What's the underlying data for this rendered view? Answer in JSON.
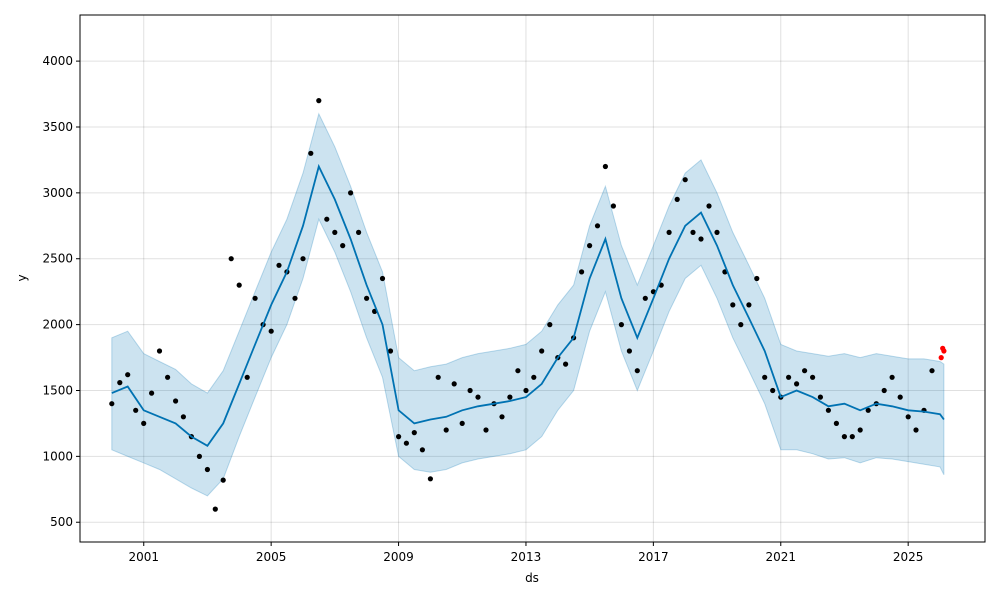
{
  "chart_data": {
    "type": "line",
    "title": "",
    "xlabel": "ds",
    "ylabel": "y",
    "x_range": [
      "1999-01-01",
      "2027-06-01"
    ],
    "ylim": [
      350,
      4350
    ],
    "x_ticks": [
      "2001",
      "2005",
      "2009",
      "2013",
      "2017",
      "2021",
      "2025"
    ],
    "y_ticks": [
      500,
      1000,
      1500,
      2000,
      2500,
      3000,
      3500,
      4000
    ],
    "grid": true,
    "legend": "none",
    "colors": {
      "observed": "#000000",
      "forecast_line": "#0072B2",
      "uncertainty_band": "#0072B2",
      "recent_points": "#ff0000"
    },
    "series": [
      {
        "role": "observed",
        "x": [
          "2000-01-01",
          "2000-04-01",
          "2000-07-01",
          "2000-10-01",
          "2001-01-01",
          "2001-04-01",
          "2001-07-01",
          "2001-10-01",
          "2002-01-01",
          "2002-04-01",
          "2002-07-01",
          "2002-10-01",
          "2003-01-01",
          "2003-04-01",
          "2003-07-01",
          "2003-10-01",
          "2004-01-01",
          "2004-04-01",
          "2004-07-01",
          "2004-10-01",
          "2005-01-01",
          "2005-04-01",
          "2005-07-01",
          "2005-10-01",
          "2006-01-01",
          "2006-04-01",
          "2006-07-01",
          "2006-10-01",
          "2007-01-01",
          "2007-04-01",
          "2007-07-01",
          "2007-10-01",
          "2008-01-01",
          "2008-04-01",
          "2008-07-01",
          "2008-10-01",
          "2009-01-01",
          "2009-04-01",
          "2009-07-01",
          "2009-10-01",
          "2010-01-01",
          "2010-04-01",
          "2010-07-01",
          "2010-10-01",
          "2011-01-01",
          "2011-04-01",
          "2011-07-01",
          "2011-10-01",
          "2012-01-01",
          "2012-04-01",
          "2012-07-01",
          "2012-10-01",
          "2013-01-01",
          "2013-04-01",
          "2013-07-01",
          "2013-10-01",
          "2014-01-01",
          "2014-04-01",
          "2014-07-01",
          "2014-10-01",
          "2015-01-01",
          "2015-04-01",
          "2015-07-01",
          "2015-10-01",
          "2016-01-01",
          "2016-04-01",
          "2016-07-01",
          "2016-10-01",
          "2017-01-01",
          "2017-04-01",
          "2017-07-01",
          "2017-10-01",
          "2018-01-01",
          "2018-04-01",
          "2018-07-01",
          "2018-10-01",
          "2019-01-01",
          "2019-04-01",
          "2019-07-01",
          "2019-10-01",
          "2020-01-01",
          "2020-04-01",
          "2020-07-01",
          "2020-10-01",
          "2021-01-01",
          "2021-04-01",
          "2021-07-01",
          "2021-10-01",
          "2022-01-01",
          "2022-04-01",
          "2022-07-01",
          "2022-10-01",
          "2023-01-01",
          "2023-04-01",
          "2023-07-01",
          "2023-10-01",
          "2024-01-01",
          "2024-04-01",
          "2024-07-01",
          "2024-10-01",
          "2025-01-01",
          "2025-04-01",
          "2025-07-01",
          "2025-10-01"
        ],
        "y": [
          1400,
          1560,
          1620,
          1350,
          1250,
          1480,
          1800,
          1600,
          1420,
          1300,
          1150,
          1000,
          900,
          600,
          820,
          2500,
          2300,
          1600,
          2200,
          2000,
          1950,
          2450,
          2400,
          2200,
          2500,
          3300,
          3700,
          2800,
          2700,
          2600,
          3000,
          2700,
          2200,
          2100,
          2350,
          1800,
          1150,
          1100,
          1180,
          1050,
          830,
          1600,
          1200,
          1550,
          1250,
          1500,
          1450,
          1200,
          1400,
          1300,
          1450,
          1650,
          1500,
          1600,
          1800,
          2000,
          1750,
          1700,
          1900,
          2400,
          2600,
          2750,
          3200,
          2900,
          2000,
          1800,
          1650,
          2200,
          2250,
          2300,
          2700,
          2950,
          3100,
          2700,
          2650,
          2900,
          2700,
          2400,
          2150,
          2000,
          2150,
          2350,
          1600,
          1500,
          1450,
          1600,
          1550,
          1650,
          1600,
          1450,
          1350,
          1250,
          1150,
          1150,
          1200,
          1350,
          1400,
          1500,
          1600,
          1450,
          1300,
          1200,
          1350,
          1650
        ]
      },
      {
        "role": "recent_observed",
        "x": [
          "2026-01-15",
          "2026-02-01",
          "2026-02-15"
        ],
        "y": [
          1750,
          1820,
          1800
        ]
      },
      {
        "role": "forecast",
        "x": [
          "2000-01-01",
          "2000-07-01",
          "2001-01-01",
          "2001-07-01",
          "2002-01-01",
          "2002-07-01",
          "2003-01-01",
          "2003-07-01",
          "2004-01-01",
          "2004-07-01",
          "2005-01-01",
          "2005-07-01",
          "2006-01-01",
          "2006-07-01",
          "2007-01-01",
          "2007-07-01",
          "2008-01-01",
          "2008-07-01",
          "2009-01-01",
          "2009-07-01",
          "2010-01-01",
          "2010-07-01",
          "2011-01-01",
          "2011-07-01",
          "2012-01-01",
          "2012-07-01",
          "2013-01-01",
          "2013-07-01",
          "2014-01-01",
          "2014-07-01",
          "2015-01-01",
          "2015-07-01",
          "2016-01-01",
          "2016-07-01",
          "2017-01-01",
          "2017-07-01",
          "2018-01-01",
          "2018-07-01",
          "2019-01-01",
          "2019-07-01",
          "2020-01-01",
          "2020-07-01",
          "2021-01-01",
          "2021-07-01",
          "2022-01-01",
          "2022-07-01",
          "2023-01-01",
          "2023-07-01",
          "2024-01-01",
          "2024-07-01",
          "2025-01-01",
          "2025-07-01",
          "2026-01-01",
          "2026-02-15"
        ],
        "y": [
          1480,
          1530,
          1350,
          1300,
          1250,
          1150,
          1080,
          1250,
          1550,
          1850,
          2150,
          2400,
          2750,
          3200,
          2950,
          2650,
          2300,
          2000,
          1350,
          1250,
          1280,
          1300,
          1350,
          1380,
          1400,
          1420,
          1450,
          1550,
          1750,
          1900,
          2350,
          2650,
          2200,
          1900,
          2200,
          2500,
          2750,
          2850,
          2600,
          2300,
          2050,
          1800,
          1450,
          1500,
          1450,
          1380,
          1400,
          1350,
          1400,
          1380,
          1350,
          1340,
          1320,
          1280
        ]
      }
    ],
    "uncertainty_interval": {
      "x": [
        "2000-01-01",
        "2000-07-01",
        "2001-01-01",
        "2001-07-01",
        "2002-01-01",
        "2002-07-01",
        "2003-01-01",
        "2003-07-01",
        "2004-01-01",
        "2004-07-01",
        "2005-01-01",
        "2005-07-01",
        "2006-01-01",
        "2006-07-01",
        "2007-01-01",
        "2007-07-01",
        "2008-01-01",
        "2008-07-01",
        "2009-01-01",
        "2009-07-01",
        "2010-01-01",
        "2010-07-01",
        "2011-01-01",
        "2011-07-01",
        "2012-01-01",
        "2012-07-01",
        "2013-01-01",
        "2013-07-01",
        "2014-01-01",
        "2014-07-01",
        "2015-01-01",
        "2015-07-01",
        "2016-01-01",
        "2016-07-01",
        "2017-01-01",
        "2017-07-01",
        "2018-01-01",
        "2018-07-01",
        "2019-01-01",
        "2019-07-01",
        "2020-01-01",
        "2020-07-01",
        "2021-01-01",
        "2021-07-01",
        "2022-01-01",
        "2022-07-01",
        "2023-01-01",
        "2023-07-01",
        "2024-01-01",
        "2024-07-01",
        "2025-01-01",
        "2025-07-01",
        "2026-01-01",
        "2026-02-15"
      ],
      "lower": [
        1050,
        1000,
        950,
        900,
        830,
        760,
        700,
        830,
        1150,
        1450,
        1750,
        2000,
        2350,
        2800,
        2550,
        2250,
        1900,
        1600,
        1000,
        900,
        880,
        900,
        950,
        980,
        1000,
        1020,
        1050,
        1150,
        1350,
        1500,
        1950,
        2250,
        1800,
        1500,
        1800,
        2100,
        2350,
        2450,
        2200,
        1900,
        1650,
        1400,
        1050,
        1050,
        1020,
        980,
        990,
        950,
        990,
        980,
        960,
        940,
        920,
        860
      ],
      "upper": [
        1900,
        1950,
        1780,
        1720,
        1660,
        1550,
        1480,
        1650,
        1950,
        2250,
        2550,
        2800,
        3150,
        3600,
        3350,
        3050,
        2700,
        2400,
        1750,
        1650,
        1680,
        1700,
        1750,
        1780,
        1800,
        1820,
        1850,
        1950,
        2150,
        2300,
        2750,
        3050,
        2600,
        2300,
        2600,
        2900,
        3150,
        3250,
        3000,
        2700,
        2450,
        2200,
        1850,
        1800,
        1780,
        1760,
        1780,
        1750,
        1780,
        1760,
        1740,
        1740,
        1720,
        1700
      ]
    }
  }
}
